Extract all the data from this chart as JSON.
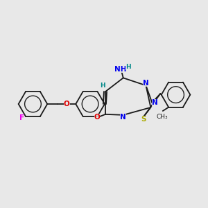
{
  "bg_color": "#e8e8e8",
  "bond_color": "#1a1a1a",
  "N_color": "#0000ee",
  "O_color": "#dd0000",
  "S_color": "#aaaa00",
  "F_color": "#ee00ee",
  "H_color": "#008888",
  "figsize": [
    3.0,
    3.0
  ],
  "dpi": 100,
  "xlim": [
    0,
    10
  ],
  "ylim": [
    0,
    10
  ]
}
